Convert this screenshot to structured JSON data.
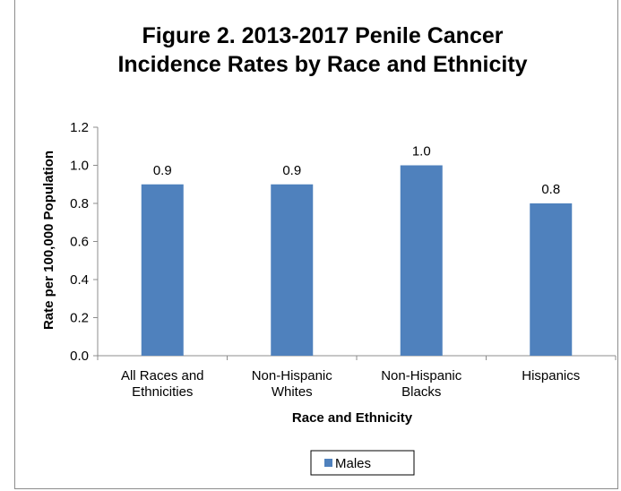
{
  "chart_data": {
    "type": "bar",
    "title_lines": [
      "Figure 2.  2013-2017 Penile Cancer",
      "Incidence Rates by Race and Ethnicity"
    ],
    "categories": [
      [
        "All Races and",
        "Ethnicities"
      ],
      [
        "Non-Hispanic",
        "Whites"
      ],
      [
        "Non-Hispanic",
        "Blacks"
      ],
      [
        "Hispanics"
      ]
    ],
    "series": [
      {
        "name": "Males",
        "values": [
          0.9,
          0.9,
          1.0,
          0.8
        ],
        "color": "#4f81bd"
      }
    ],
    "data_labels": [
      "0.9",
      "0.9",
      "1.0",
      "0.8"
    ],
    "xlabel": "Race and Ethnicity",
    "ylabel": "Rate per 100,000 Population",
    "ylim": [
      0,
      1.2
    ],
    "yticks": [
      "0.0",
      "0.2",
      "0.4",
      "0.6",
      "0.8",
      "1.0",
      "1.2"
    ],
    "grid": false,
    "legend_position": "bottom"
  }
}
